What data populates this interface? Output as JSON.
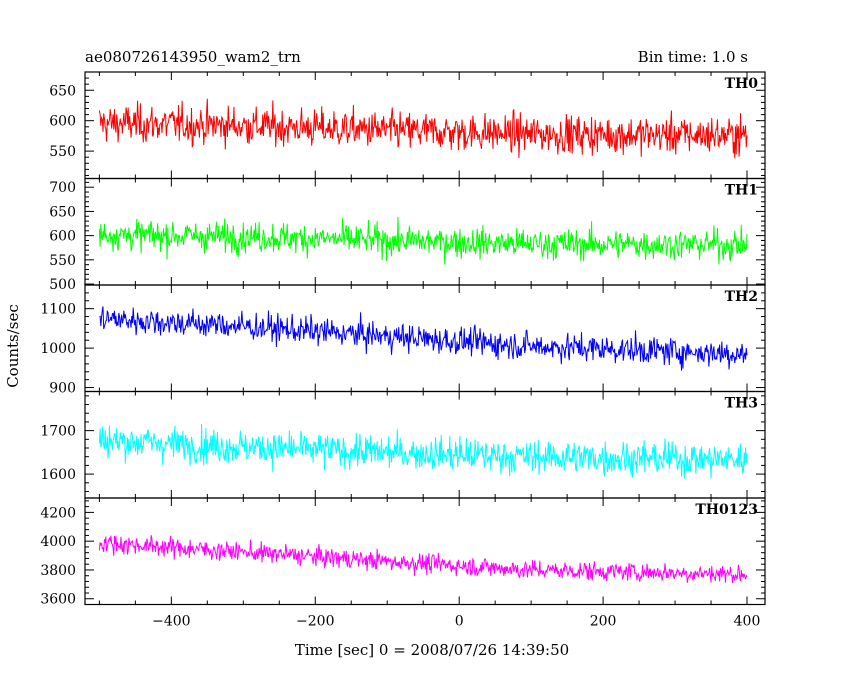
{
  "chart_data": {
    "type": "line",
    "title": "ae080726143950_wam2_trn",
    "subtitle": "Bin time: 1.0 s",
    "xlabel": "Time [sec] 0 = 2008/07/26 14:39:50",
    "ylabel": "Counts/sec",
    "xlim": [
      -520,
      425
    ],
    "x_ticks": [
      -400,
      -200,
      0,
      200,
      400
    ],
    "x_tick_labels": [
      "−400",
      "−200",
      "0",
      "200",
      "400"
    ],
    "x_start": -500,
    "x_end": 400,
    "grid": false,
    "series": [
      {
        "name": "TH0",
        "color": "#ff0000",
        "ylim": [
          505,
          680
        ],
        "ticks": [
          550,
          600,
          650
        ],
        "trend": [
          [
            -500,
            596
          ],
          [
            -300,
            592
          ],
          [
            -100,
            584
          ],
          [
            100,
            578
          ],
          [
            400,
            576
          ]
        ],
        "noise": 40
      },
      {
        "name": "TH1",
        "color": "#00ff00",
        "ylim": [
          498,
          718
        ],
        "ticks": [
          500,
          550,
          600,
          650,
          700
        ],
        "trend": [
          [
            -500,
            602
          ],
          [
            -300,
            598
          ],
          [
            -100,
            590
          ],
          [
            100,
            583
          ],
          [
            400,
            581
          ]
        ],
        "noise": 40
      },
      {
        "name": "TH2",
        "color": "#0000ff",
        "ylim": [
          890,
          1160
        ],
        "ticks": [
          900,
          1000,
          1100
        ],
        "trend": [
          [
            -500,
            1075
          ],
          [
            -300,
            1055
          ],
          [
            -100,
            1030
          ],
          [
            100,
            1005
          ],
          [
            400,
            985
          ]
        ],
        "noise": 45
      },
      {
        "name": "TH3",
        "color": "#00ffff",
        "ylim": [
          1545,
          1790
        ],
        "ticks": [
          1600,
          1700
        ],
        "trend": [
          [
            -500,
            1678
          ],
          [
            -300,
            1662
          ],
          [
            -100,
            1650
          ],
          [
            100,
            1640
          ],
          [
            400,
            1633
          ]
        ],
        "noise": 50
      },
      {
        "name": "TH0123",
        "color": "#ff00ff",
        "ylim": [
          3560,
          4300
        ],
        "ticks": [
          3600,
          3800,
          4000,
          4200
        ],
        "trend": [
          [
            -500,
            3990
          ],
          [
            -300,
            3925
          ],
          [
            -100,
            3860
          ],
          [
            100,
            3800
          ],
          [
            400,
            3770
          ]
        ],
        "noise": 85
      }
    ]
  }
}
